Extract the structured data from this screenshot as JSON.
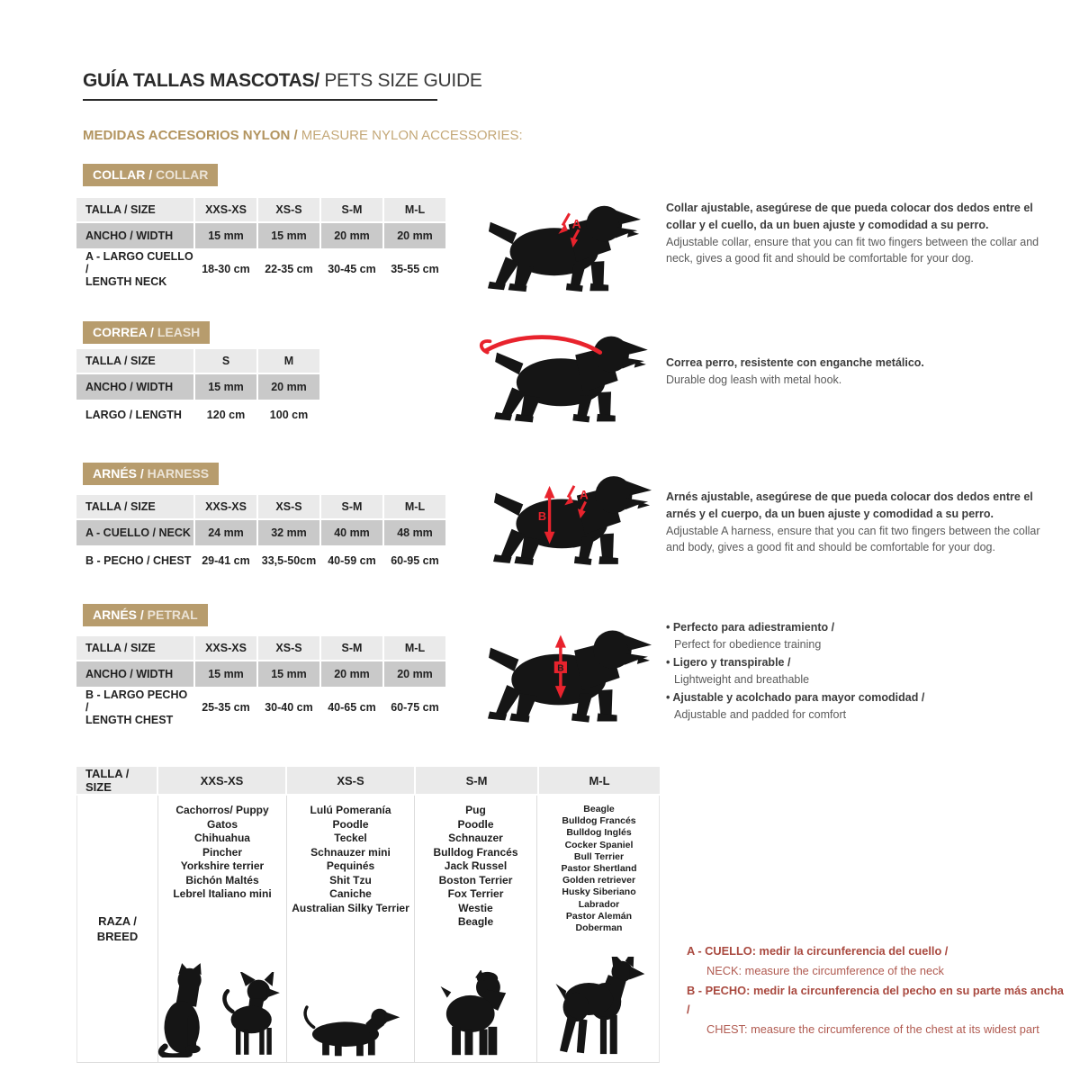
{
  "page": {
    "title_bold": "GUÍA TALLAS MASCOTAS/",
    "title_light": " PETS SIZE GUIDE",
    "subtitle_bold": "MEDIDAS ACCESORIOS NYLON /",
    "subtitle_light": " MEASURE NYLON ACCESSORIES:"
  },
  "colors": {
    "tan": "#b79c6d",
    "arrow_red": "#e8232d",
    "note_red": "#a9493f",
    "header_gray": "#eaeaea",
    "row_gray": "#c9c9c9"
  },
  "sections": {
    "collar": {
      "badge_bold": "COLLAR /",
      "badge_light": " COLLAR",
      "marker": "A",
      "table": {
        "header": [
          "TALLA / SIZE",
          "XXS-XS",
          "XS-S",
          "S-M",
          "M-L"
        ],
        "rows": [
          {
            "label": "ANCHO / WIDTH",
            "values": [
              "15 mm",
              "15 mm",
              "20 mm",
              "20 mm"
            ]
          },
          {
            "label": "A - LARGO CUELLO /",
            "label2": "LENGTH NECK",
            "values": [
              "18-30 cm",
              "22-35 cm",
              "30-45 cm",
              "35-55 cm"
            ]
          }
        ]
      },
      "desc_es": "Collar ajustable, asegúrese de que pueda colocar dos dedos entre el collar y el cuello, da un buen ajuste y comodidad a su perro.",
      "desc_en": "Adjustable collar, ensure that you can fit two fingers between the collar and neck, gives a good fit and should be comfortable for your dog."
    },
    "leash": {
      "badge_bold": "CORREA /",
      "badge_light": " LEASH",
      "table": {
        "header": [
          "TALLA / SIZE",
          "S",
          "M"
        ],
        "rows": [
          {
            "label": "ANCHO / WIDTH",
            "values": [
              "15 mm",
              "20 mm"
            ]
          },
          {
            "label": "LARGO / LENGTH",
            "values": [
              "120 cm",
              "100 cm"
            ]
          }
        ]
      },
      "desc_es": "Correa perro, resistente con enganche metálico.",
      "desc_en": "Durable dog leash with metal hook."
    },
    "harness": {
      "badge_bold": "ARNÉS /",
      "badge_light": " HARNESS",
      "marker_a": "A",
      "marker_b": "B",
      "table": {
        "header": [
          "TALLA / SIZE",
          "XXS-XS",
          "XS-S",
          "S-M",
          "M-L"
        ],
        "rows": [
          {
            "label": "A - CUELLO / NECK",
            "values": [
              "24 mm",
              "32 mm",
              "40 mm",
              "48 mm"
            ]
          },
          {
            "label": "B - PECHO / CHEST",
            "values": [
              "29-41 cm",
              "33,5-50cm",
              "40-59 cm",
              "60-95 cm"
            ]
          }
        ]
      },
      "desc_es": "Arnés ajustable, asegúrese de que pueda colocar dos dedos entre el arnés y el cuerpo, da un buen ajuste y comodidad a su perro.",
      "desc_en": "Adjustable A harness, ensure that you can fit two fingers between the collar and body, gives a good fit and should be comfortable for your dog."
    },
    "petral": {
      "badge_bold": "ARNÉS /",
      "badge_light": " PETRAL",
      "marker_b": "B",
      "table": {
        "header": [
          "TALLA / SIZE",
          "XXS-XS",
          "XS-S",
          "S-M",
          "M-L"
        ],
        "rows": [
          {
            "label": "ANCHO / WIDTH",
            "values": [
              "15 mm",
              "15 mm",
              "20 mm",
              "20 mm"
            ]
          },
          {
            "label": "B - LARGO PECHO /",
            "label2": "LENGTH CHEST",
            "values": [
              "25-35 cm",
              "30-40 cm",
              "40-65 cm",
              "60-75 cm"
            ]
          }
        ]
      },
      "bullets": [
        {
          "es": "• Perfecto para adiestramiento /",
          "en": "Perfect for obedience training"
        },
        {
          "es": "• Ligero y transpirable /",
          "en": "Lightweight and breathable"
        },
        {
          "es": "• Ajustable y acolchado para mayor comodidad /",
          "en": "Adjustable and padded for comfort"
        }
      ]
    },
    "breeds": {
      "header": [
        "TALLA / SIZE",
        "XXS-XS",
        "XS-S",
        "S-M",
        "M-L"
      ],
      "row_label1": "RAZA /",
      "row_label2": "BREED",
      "columns": [
        [
          "Cachorros/ Puppy",
          "Gatos",
          "Chihuahua",
          "Pincher",
          "Yorkshire terrier",
          "Bichón Maltés",
          "Lebrel Italiano mini"
        ],
        [
          "Lulú Pomeranía",
          "Poodle",
          "Teckel",
          "Schnauzer mini",
          "Pequinés",
          "Shit Tzu",
          "Caniche",
          "Australian Silky Terrier"
        ],
        [
          "Pug",
          "Poodle",
          "Schnauzer",
          "Bulldog Francés",
          "Jack Russel",
          "Boston Terrier",
          "Fox Terrier",
          "Westie",
          "Beagle"
        ],
        [
          "Beagle",
          "Bulldog Francés",
          "Bulldog Inglés",
          "Cocker Spaniel",
          "Bull Terrier",
          "Pastor Shertland",
          "Golden retriever",
          "Husky Siberiano",
          "Labrador",
          "Pastor Alemán",
          "Doberman"
        ]
      ]
    }
  },
  "notes": [
    {
      "bold": "A - CUELLO: medir la circunferencia del cuello /",
      "normal": "NECK: measure the circumference of the neck"
    },
    {
      "bold": "B - PECHO: medir la circunferencia del pecho en su parte más ancha /",
      "normal": "CHEST: measure the circumference of the chest at its widest part"
    }
  ]
}
